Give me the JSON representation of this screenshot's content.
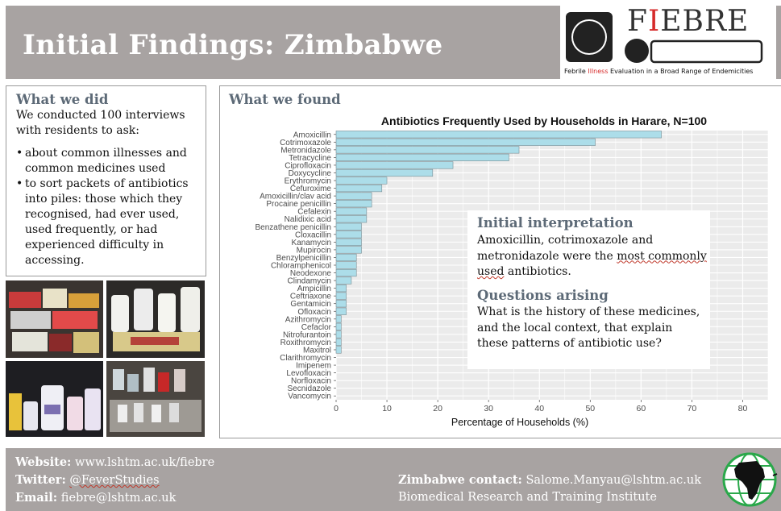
{
  "header": {
    "title": "Initial Findings: Zimbabwe",
    "logo_text_pre": "F",
    "logo_text_red": "I",
    "logo_text_post": "EBRE",
    "tagline_pre": "Febrile ",
    "tagline_red": "Illness",
    "tagline_post": " Evaluation in a Broad Range of Endemicities"
  },
  "left": {
    "heading": "What we did",
    "intro": "We conducted 100 interviews with residents to ask:",
    "bullets": [
      "about common illnesses and common medicines used",
      "to sort packets of antibiotics into piles: those which they recognised, had ever used, used frequently, or had experienced difficulty in accessing."
    ]
  },
  "found": {
    "heading": "What we found"
  },
  "chart_data": {
    "type": "bar",
    "orientation": "horizontal",
    "title": "Antibiotics Frequently Used by Households in Harare, N=100",
    "xlabel": "Percentage of Households (%)",
    "ylabel": "",
    "xlim": [
      0,
      85
    ],
    "xticks": [
      0,
      10,
      20,
      30,
      40,
      50,
      60,
      70,
      80
    ],
    "grid": true,
    "bar_color": "#acdde9",
    "categories": [
      "Amoxicillin",
      "Cotrimoxazole",
      "Metronidazole",
      "Tetracycline",
      "Ciprofloxacin",
      "Doxycycline",
      "Erythromycin",
      "Cefuroxime",
      "Amoxicillin/clav acid",
      "Procaine penicillin",
      "Cefalexin",
      "Nalidixic acid",
      "Benzathene penicillin",
      "Cloxacillin",
      "Kanamycin",
      "Mupirocin",
      "Benzylpenicillin",
      "Chloramphenicol",
      "Neodexone",
      "Clindamycin",
      "Ampicillin",
      "Ceftriaxone",
      "Gentamicin",
      "Ofloxacin",
      "Azithromycin",
      "Cefaclor",
      "Nitrofurantoin",
      "Roxithromycin",
      "Maxitrol",
      "Clarithromycin",
      "Imipenem",
      "Levofloxacin",
      "Norfloxacin",
      "Secnidazole",
      "Vancomycin"
    ],
    "values": [
      64,
      51,
      36,
      34,
      23,
      19,
      10,
      9,
      7,
      7,
      6,
      6,
      5,
      5,
      5,
      5,
      4,
      4,
      4,
      3,
      2,
      2,
      2,
      2,
      1,
      1,
      1,
      1,
      1,
      0,
      0,
      0,
      0,
      0,
      0
    ]
  },
  "interpretation": {
    "heading1": "Initial interpretation",
    "text1_a": "Amoxicillin, cotrimoxazole and metronidazole were the ",
    "text1_b": "most commonly used",
    "text1_c": " antibiotics.",
    "heading2": "Questions arising",
    "text2": "What is the history of these medicines,  and the local context, that explain these patterns of antibiotic use?"
  },
  "footer": {
    "website_label": "Website:",
    "website_value": " www.lshtm.ac.uk/fiebre",
    "twitter_label": "Twitter:",
    "twitter_value": "@FeverStudies",
    "email_label": "Email:",
    "email_value": " fiebre@lshtm.ac.uk",
    "contact_label": "Zimbabwe contact:",
    "contact_value": " Salome.Manyau@lshtm.ac.uk",
    "institute": "Biomedical Research and Training Institute"
  },
  "colors": {
    "header_bg": "#a8a3a2",
    "heading": "#5d6a77",
    "accent_red": "#d62b2b",
    "globe_green": "#2aa84a"
  }
}
